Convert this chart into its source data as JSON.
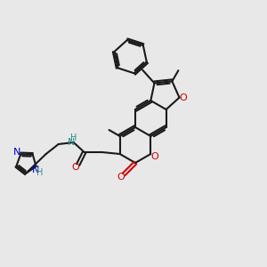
{
  "bg_color": "#e8e8e8",
  "bond_color": "#1a1a1a",
  "nitrogen_color": "#0000cd",
  "oxygen_color": "#cc0000",
  "nh_color": "#2e8b8b",
  "figsize": [
    3.0,
    3.0
  ],
  "dpi": 100,
  "bond_lw": 1.5,
  "font_size": 7.5
}
